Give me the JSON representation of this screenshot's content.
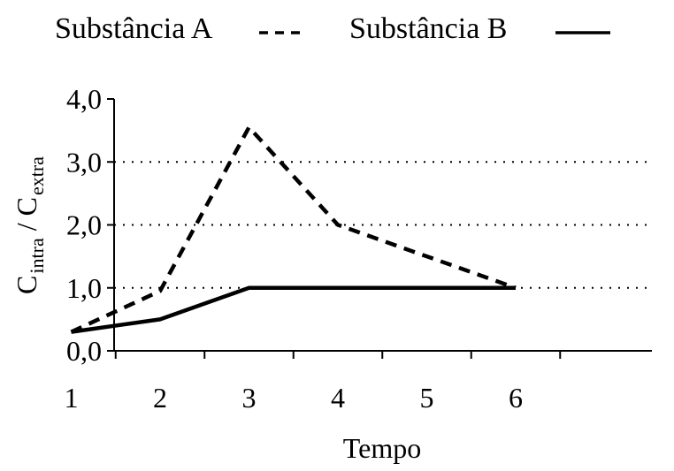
{
  "chart_data": {
    "type": "line",
    "xlabel": "Tempo",
    "ylabel_main": "C",
    "ylabel_sub1": "intra",
    "ylabel_sep": " / C",
    "ylabel_sub2": "extra",
    "x": [
      1,
      2,
      3,
      4,
      5,
      6
    ],
    "x_tick_labels": [
      "1",
      "2",
      "3",
      "4",
      "5",
      "6"
    ],
    "xlim": [
      0.5,
      6.5
    ],
    "ylim": [
      0,
      4
    ],
    "y_ticks": [
      0,
      1,
      2,
      3,
      4
    ],
    "y_tick_labels": [
      "0,0",
      "1,0",
      "2,0",
      "3,0",
      "4,0"
    ],
    "grid": {
      "horizontal_dotted_at": [
        1,
        2,
        3
      ]
    },
    "legend_position": "top",
    "series": [
      {
        "name": "Substância A",
        "style": "dashed",
        "color": "#000000",
        "points": [
          [
            1,
            0.3
          ],
          [
            2,
            0.95
          ],
          [
            3,
            3.55
          ],
          [
            4,
            2.0
          ],
          [
            5,
            1.5
          ],
          [
            6,
            1.0
          ]
        ]
      },
      {
        "name": "Substância B",
        "style": "solid",
        "color": "#000000",
        "points": [
          [
            1,
            0.3
          ],
          [
            2,
            0.5
          ],
          [
            3,
            1.0
          ],
          [
            4,
            1.0
          ],
          [
            5,
            1.0
          ],
          [
            6,
            1.0
          ]
        ]
      }
    ]
  }
}
